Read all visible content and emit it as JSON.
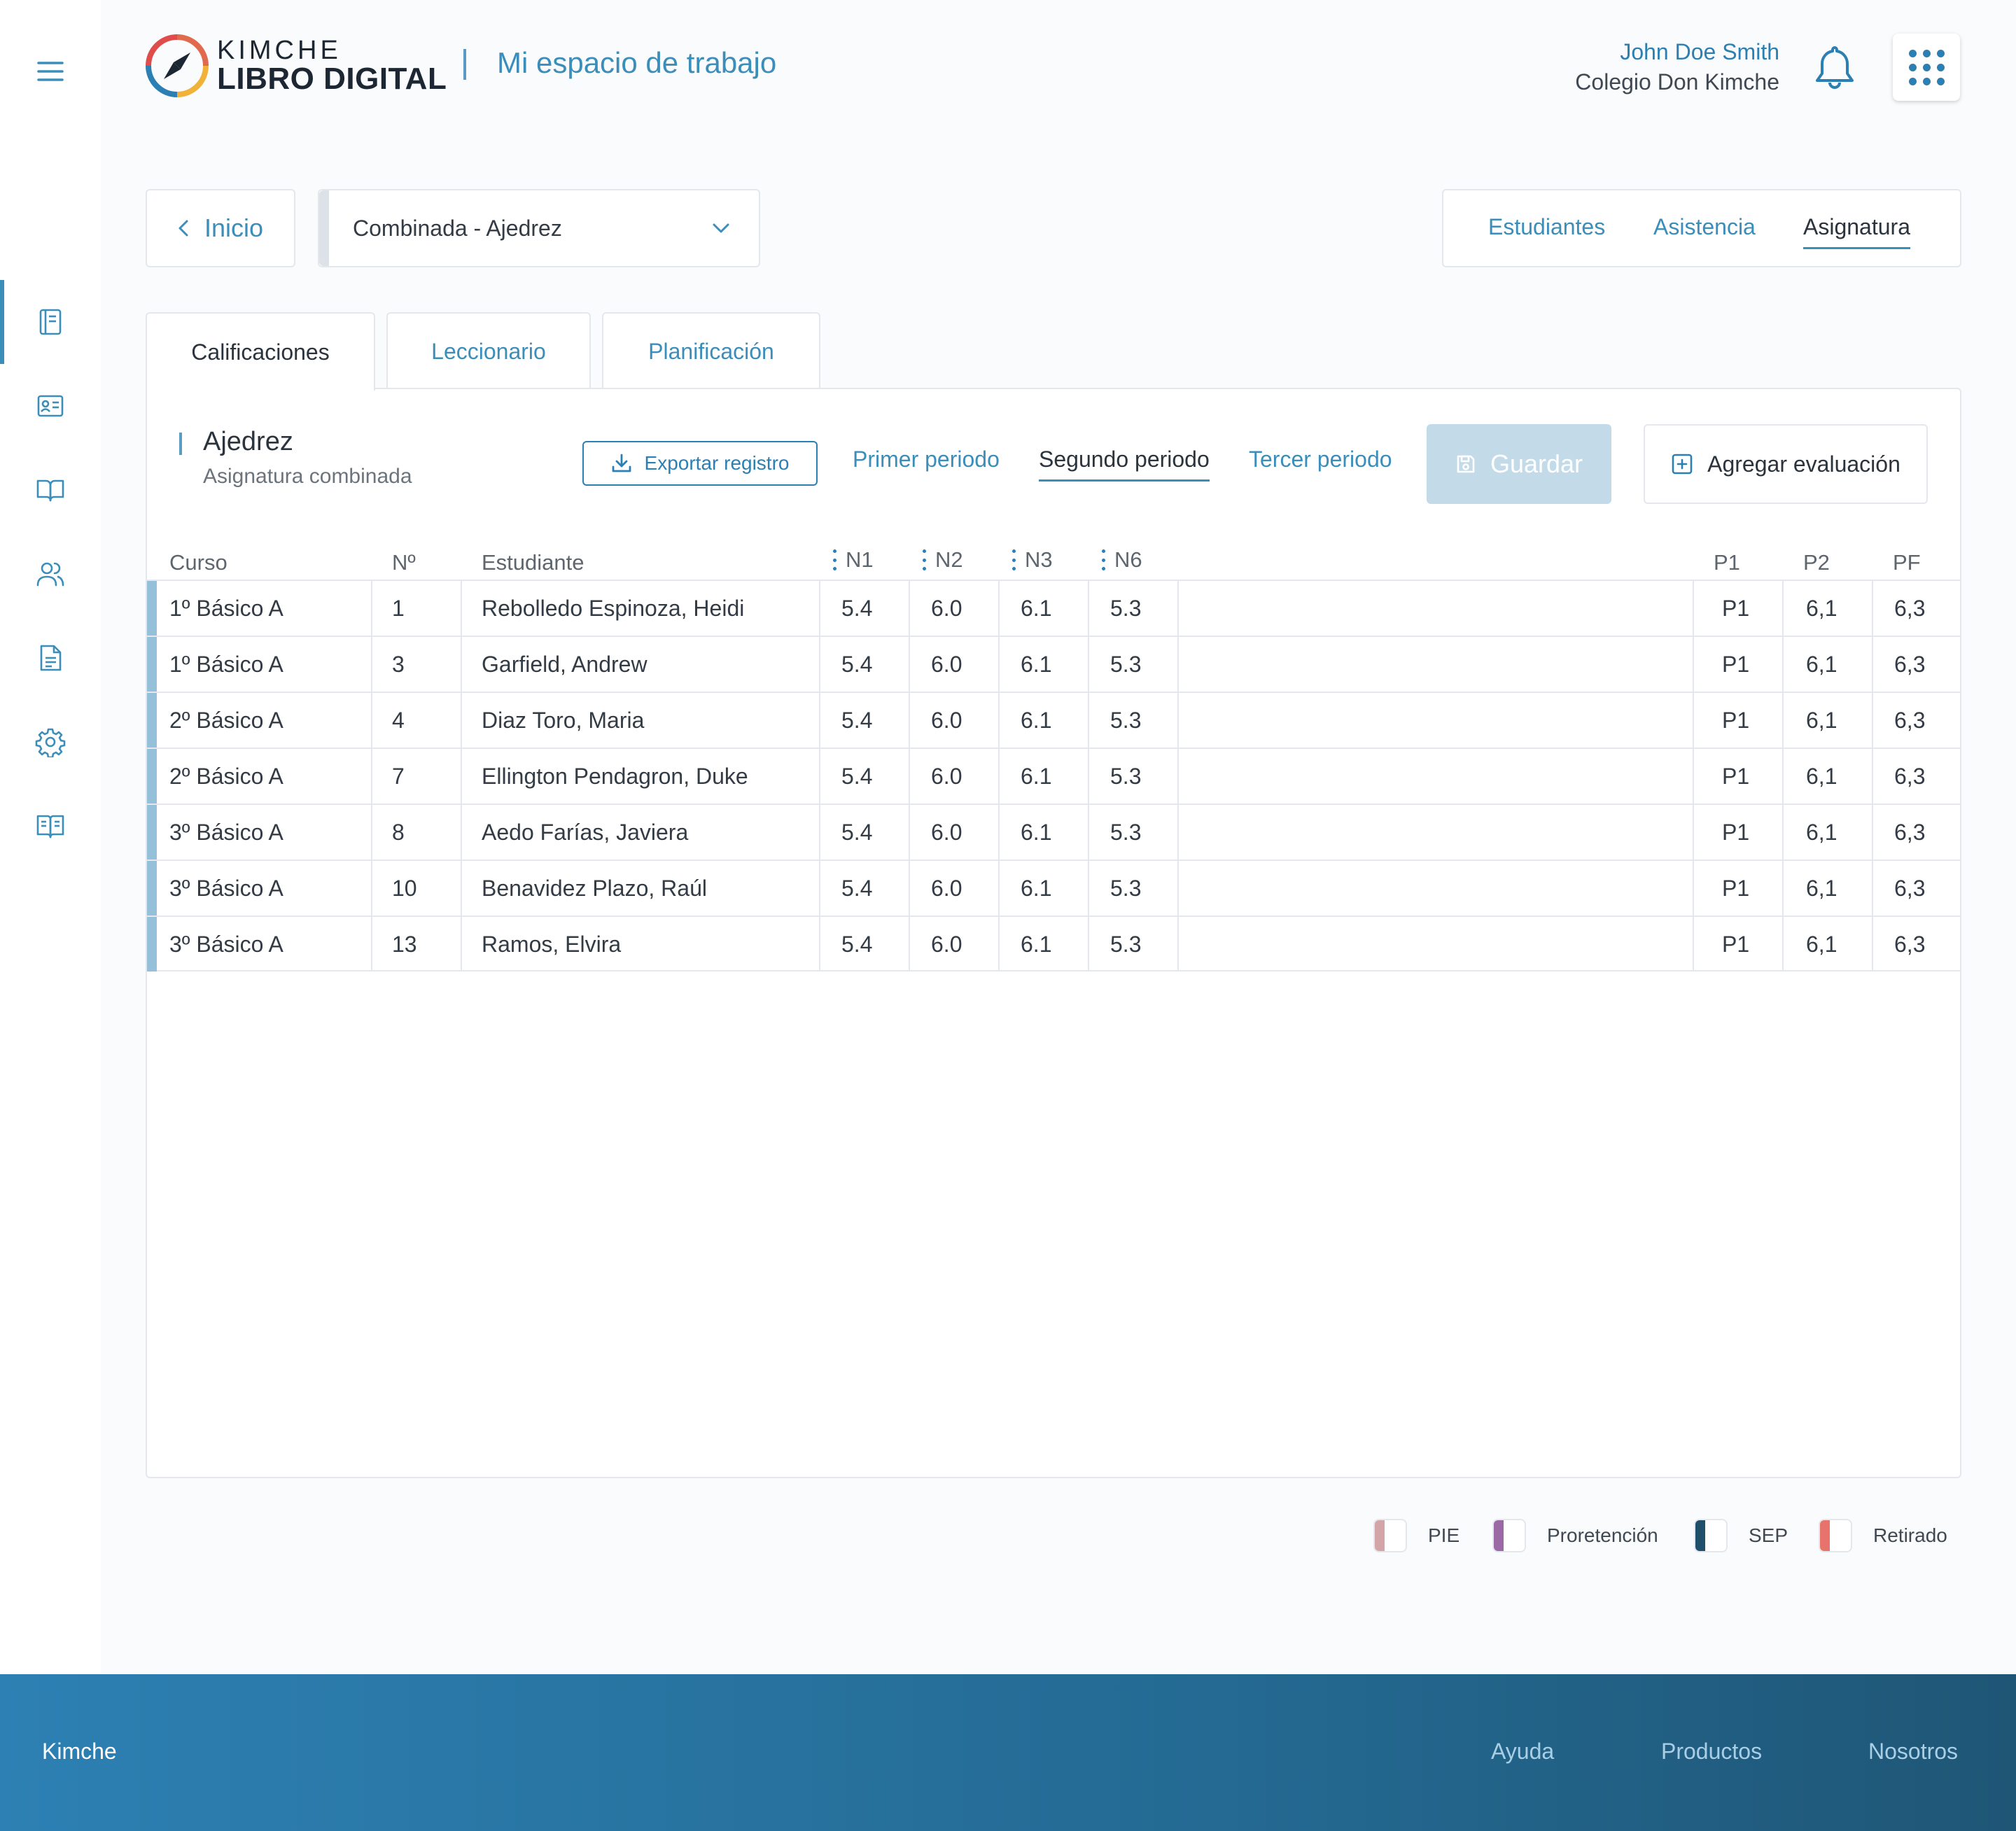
{
  "header": {
    "logo_top": "KIMCHE",
    "logo_bottom": "LIBRO DIGITAL",
    "workspace_title": "Mi espacio de trabajo",
    "user_name": "John Doe Smith",
    "school": "Colegio Don Kimche"
  },
  "sidebar": {
    "items": [
      {
        "icon": "notebook-icon",
        "active": true
      },
      {
        "icon": "id-card-icon"
      },
      {
        "icon": "open-book-icon"
      },
      {
        "icon": "users-icon"
      },
      {
        "icon": "document-icon"
      },
      {
        "icon": "gear-icon"
      },
      {
        "icon": "book-reader-icon"
      }
    ]
  },
  "controls": {
    "back_label": "Inicio",
    "course_select_value": "Combinada - Ajedrez",
    "top_tabs": [
      "Estudiantes",
      "Asistencia",
      "Asignatura"
    ],
    "active_top_tab": "Asignatura"
  },
  "sub_tabs": [
    "Calificaciones",
    "Leccionario",
    "Planificación"
  ],
  "panel": {
    "subject_title": "Ajedrez",
    "subject_subtitle": "Asignatura combinada",
    "export_label": "Exportar registro",
    "periods": [
      "Primer periodo",
      "Segundo periodo",
      "Tercer periodo"
    ],
    "active_period": "Segundo periodo",
    "save_label": "Guardar",
    "add_label": "Agregar evaluación"
  },
  "table": {
    "headers": {
      "course": "Curso",
      "number": "Nº",
      "student": "Estudiante",
      "n1": "N1",
      "n2": "N2",
      "n3": "N3",
      "n6": "N6",
      "p1": "P1",
      "p2": "P2",
      "pf": "PF"
    },
    "rows": [
      {
        "course": "1º Básico A",
        "number": "1",
        "student": "Rebolledo Espinoza, Heidi",
        "n1": "5.4",
        "n2": "6.0",
        "n3": "6.1",
        "n6": "5.3",
        "p1": "P1",
        "p2": "6,1",
        "pf": "6,3"
      },
      {
        "course": "1º Básico A",
        "number": "3",
        "student": "Garfield, Andrew",
        "n1": "5.4",
        "n2": "6.0",
        "n3": "6.1",
        "n6": "5.3",
        "p1": "P1",
        "p2": "6,1",
        "pf": "6,3"
      },
      {
        "course": "2º Básico A",
        "number": "4",
        "student": "Diaz Toro, Maria",
        "n1": "5.4",
        "n2": "6.0",
        "n3": "6.1",
        "n6": "5.3",
        "p1": "P1",
        "p2": "6,1",
        "pf": "6,3"
      },
      {
        "course": "2º Básico A",
        "number": "7",
        "student": "Ellington Pendagron, Duke",
        "n1": "5.4",
        "n2": "6.0",
        "n3": "6.1",
        "n6": "5.3",
        "p1": "P1",
        "p2": "6,1",
        "pf": "6,3"
      },
      {
        "course": "3º Básico A",
        "number": "8",
        "student": "Aedo Farías, Javiera",
        "n1": "5.4",
        "n2": "6.0",
        "n3": "6.1",
        "n6": "5.3",
        "p1": "P1",
        "p2": "6,1",
        "pf": "6,3"
      },
      {
        "course": "3º Básico A",
        "number": "10",
        "student": "Benavidez Plazo, Raúl",
        "n1": "5.4",
        "n2": "6.0",
        "n3": "6.1",
        "n6": "5.3",
        "p1": "P1",
        "p2": "6,1",
        "pf": "6,3"
      },
      {
        "course": "3º Básico A",
        "number": "13",
        "student": "Ramos, Elvira",
        "n1": "5.4",
        "n2": "6.0",
        "n3": "6.1",
        "n6": "5.3",
        "p1": "P1",
        "p2": "6,1",
        "pf": "6,3"
      }
    ]
  },
  "legend": [
    {
      "label": "PIE",
      "color": "#d4a5a8"
    },
    {
      "label": "Proretención",
      "color": "#9b6aa6"
    },
    {
      "label": "SEP",
      "color": "#1f4f6b"
    },
    {
      "label": "Retirado",
      "color": "#e8736c"
    }
  ],
  "footer": {
    "brand": "Kimche",
    "links": [
      "Ayuda",
      "Productos",
      "Nosotros"
    ]
  },
  "colors": {
    "accent": "#3b8dba",
    "row_marker": "#95c0da",
    "save_disabled": "#c3dbe8",
    "footer_start": "#2d80b3",
    "footer_end": "#1f5676"
  }
}
